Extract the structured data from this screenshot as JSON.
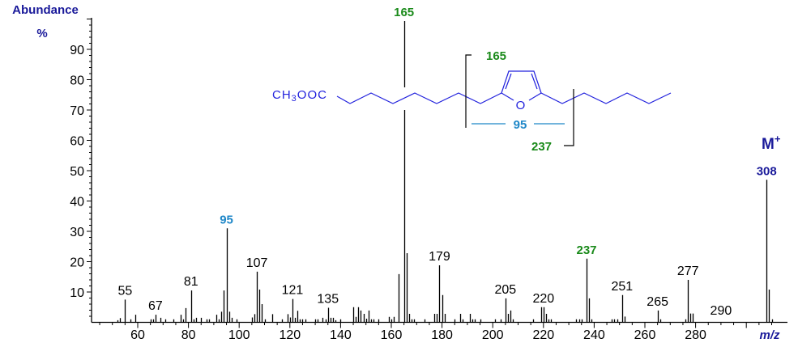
{
  "chart_data": {
    "type": "bar",
    "title": "",
    "xlabel": "m/z",
    "ylabel": "Abundance %",
    "xlim": [
      42,
      315
    ],
    "ylim": [
      0,
      100
    ],
    "x_ticks": [
      60,
      80,
      100,
      120,
      140,
      160,
      180,
      200,
      220,
      240,
      260,
      280
    ],
    "y_ticks": [
      10,
      20,
      30,
      40,
      50,
      60,
      70,
      80,
      90
    ],
    "grid": false,
    "peaks": [
      [
        52,
        0.7
      ],
      [
        53,
        1.4
      ],
      [
        55,
        7.5
      ],
      [
        57,
        1.0
      ],
      [
        59,
        2.5
      ],
      [
        65,
        1.0
      ],
      [
        66,
        1.0
      ],
      [
        67,
        2.5
      ],
      [
        69,
        1.5
      ],
      [
        71,
        1.0
      ],
      [
        74,
        1.0
      ],
      [
        77,
        2.5
      ],
      [
        78,
        1.0
      ],
      [
        79,
        4.7
      ],
      [
        81,
        10.5
      ],
      [
        82,
        1.0
      ],
      [
        83,
        1.5
      ],
      [
        85,
        1.5
      ],
      [
        87,
        1.0
      ],
      [
        88,
        1.0
      ],
      [
        91,
        2.5
      ],
      [
        92,
        1.0
      ],
      [
        93,
        3.5
      ],
      [
        94,
        10.5
      ],
      [
        95,
        31
      ],
      [
        96,
        3.5
      ],
      [
        97,
        1.5
      ],
      [
        99,
        1.0
      ],
      [
        105,
        1.6
      ],
      [
        106,
        2.7
      ],
      [
        107,
        16.7
      ],
      [
        108,
        10.8
      ],
      [
        109,
        6.0
      ],
      [
        110,
        1.0
      ],
      [
        113,
        2.7
      ],
      [
        117,
        1.0
      ],
      [
        119,
        2.7
      ],
      [
        120,
        1.6
      ],
      [
        121,
        7.7
      ],
      [
        122,
        1.5
      ],
      [
        123,
        3.8
      ],
      [
        124,
        1.0
      ],
      [
        125,
        1.0
      ],
      [
        126,
        1.0
      ],
      [
        130,
        1.0
      ],
      [
        131,
        1.0
      ],
      [
        133,
        1.5
      ],
      [
        134,
        1.0
      ],
      [
        135,
        4.8
      ],
      [
        136,
        1.5
      ],
      [
        137,
        1.5
      ],
      [
        138,
        0.7
      ],
      [
        140,
        1.0
      ],
      [
        145,
        5.0
      ],
      [
        146,
        1.8
      ],
      [
        147,
        5.0
      ],
      [
        148,
        3.9
      ],
      [
        149,
        2.8
      ],
      [
        150,
        1.2
      ],
      [
        151,
        3.9
      ],
      [
        152,
        1.0
      ],
      [
        153,
        1.0
      ],
      [
        155,
        1.0
      ],
      [
        159,
        1.8
      ],
      [
        160,
        1.0
      ],
      [
        161,
        1.8
      ],
      [
        163,
        15.9
      ],
      [
        165,
        100
      ],
      [
        166,
        22.8
      ],
      [
        167,
        2.8
      ],
      [
        168,
        1.0
      ],
      [
        169,
        1.0
      ],
      [
        173,
        1.0
      ],
      [
        177,
        2.8
      ],
      [
        178,
        2.8
      ],
      [
        179,
        18.8
      ],
      [
        180,
        9.0
      ],
      [
        181,
        2.8
      ],
      [
        185,
        1.0
      ],
      [
        187,
        2.8
      ],
      [
        188,
        1.0
      ],
      [
        191,
        2.8
      ],
      [
        192,
        1.0
      ],
      [
        193,
        1.0
      ],
      [
        195,
        1.0
      ],
      [
        201,
        1.0
      ],
      [
        203,
        1.0
      ],
      [
        205,
        7.9
      ],
      [
        206,
        2.8
      ],
      [
        207,
        3.9
      ],
      [
        208,
        1.0
      ],
      [
        216,
        1.0
      ],
      [
        219,
        5.0
      ],
      [
        220,
        5.0
      ],
      [
        221,
        2.8
      ],
      [
        222,
        1.0
      ],
      [
        223,
        1.0
      ],
      [
        233,
        1.0
      ],
      [
        234,
        1.0
      ],
      [
        235,
        1.0
      ],
      [
        237,
        21
      ],
      [
        238,
        7.9
      ],
      [
        239,
        1.0
      ],
      [
        247,
        1.0
      ],
      [
        248,
        1.0
      ],
      [
        249,
        1.0
      ],
      [
        251,
        9.0
      ],
      [
        252,
        1.9
      ],
      [
        265,
        3.9
      ],
      [
        266,
        1.0
      ],
      [
        276,
        1.0
      ],
      [
        277,
        14.0
      ],
      [
        278,
        2.9
      ],
      [
        279,
        2.9
      ],
      [
        308,
        47
      ],
      [
        309,
        10.8
      ],
      [
        310,
        1.0
      ]
    ],
    "labels": [
      {
        "mz": 55,
        "text": "55",
        "color": "#000000",
        "bold": false
      },
      {
        "mz": 67,
        "text": "67",
        "color": "#000000",
        "bold": false
      },
      {
        "mz": 81,
        "text": "81",
        "color": "#000000",
        "bold": false
      },
      {
        "mz": 95,
        "text": "95",
        "color": "#1f87c8",
        "bold": true
      },
      {
        "mz": 107,
        "text": "107",
        "color": "#000000",
        "bold": false
      },
      {
        "mz": 121,
        "text": "121",
        "color": "#000000",
        "bold": false
      },
      {
        "mz": 135,
        "text": "135",
        "color": "#000000",
        "bold": false
      },
      {
        "mz": 165,
        "text": "165",
        "color": "#1a8a1a",
        "bold": true
      },
      {
        "mz": 179,
        "text": "179",
        "color": "#000000",
        "bold": false
      },
      {
        "mz": 205,
        "text": "205",
        "color": "#000000",
        "bold": false
      },
      {
        "mz": 220,
        "text": "220",
        "color": "#000000",
        "bold": false
      },
      {
        "mz": 237,
        "text": "237",
        "color": "#1a8a1a",
        "bold": true
      },
      {
        "mz": 251,
        "text": "251",
        "color": "#000000",
        "bold": false
      },
      {
        "mz": 265,
        "text": "265",
        "color": "#000000",
        "bold": false
      },
      {
        "mz": 277,
        "text": "277",
        "color": "#000000",
        "bold": false
      },
      {
        "mz": 290,
        "text": "290",
        "color": "#000000",
        "bold": false,
        "at_percent": 1
      },
      {
        "mz": 308,
        "text": "308",
        "color": "#1a1a9a",
        "bold": true
      }
    ],
    "annotations": {
      "molecular_ion": "M",
      "molecular_ion_sup": "+",
      "structure_prefix": "CH3OOC",
      "ring_heteroatom": "O",
      "fragment_165": "165",
      "fragment_95": "95",
      "fragment_237": "237"
    }
  },
  "axis": {
    "ylabel_line1": "Abundance",
    "ylabel_line2": "%",
    "xlabel": "m/z"
  },
  "colors": {
    "axis_label": "#1a1a9a",
    "structure": "#2222dd",
    "fragment_green": "#1a8a1a",
    "fragment_blue": "#1f87c8",
    "bars": "#000000"
  }
}
